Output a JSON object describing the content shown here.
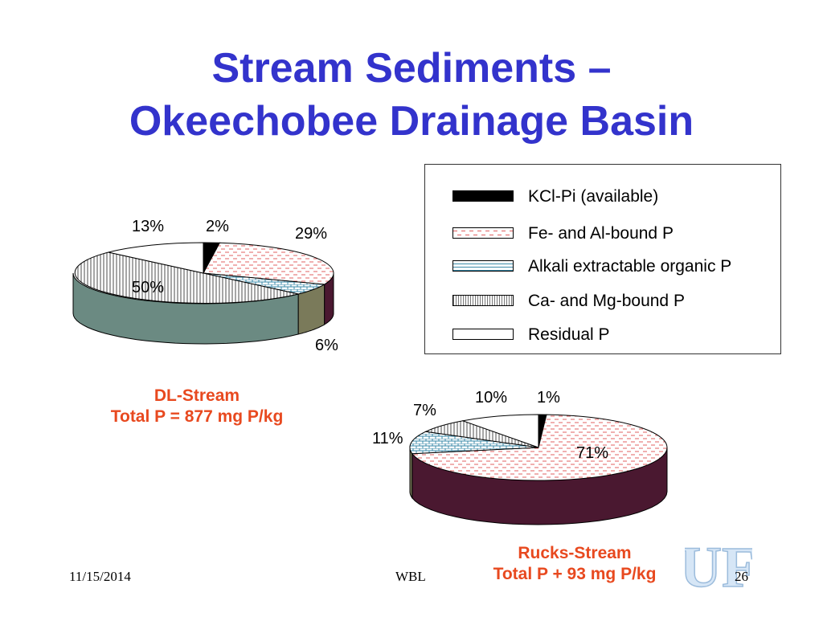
{
  "slide": {
    "title_line1": "Stream Sediments –",
    "title_line2": "Okeechobee Drainage Basin",
    "footer_date": "11/15/2014",
    "footer_center": "WBL",
    "page_number": "26",
    "logo_text": "UF"
  },
  "colors": {
    "title": "#3333cc",
    "caption": "#e8491f",
    "kcl": "#000000",
    "feal": "#e8a8a8",
    "alkali": "#3a8aa8",
    "camg": "#888888",
    "residual": "#ffffff",
    "side_feal": "#4a1830",
    "side_camg": "#6b8a82",
    "side_alkali": "#7a7a5a",
    "logo": "#cfe0f0"
  },
  "legend": [
    {
      "key": "kcl",
      "label": "KCl-Pi (available)"
    },
    {
      "key": "feal",
      "label": "Fe- and Al-bound P"
    },
    {
      "key": "alkali",
      "label": "Alkali extractable organic P"
    },
    {
      "key": "camg",
      "label": "Ca- and Mg-bound P"
    },
    {
      "key": "residual",
      "label": "Residual  P"
    }
  ],
  "chart_data": [
    {
      "type": "pie",
      "title": "DL-Stream",
      "subtitle": "Total P = 877 mg P/kg",
      "categories": [
        "KCl-Pi (available)",
        "Fe- and Al-bound P",
        "Alkali extractable organic P",
        "Ca- and Mg-bound P",
        "Residual  P"
      ],
      "values": [
        2,
        29,
        6,
        50,
        13
      ],
      "labels": [
        "2%",
        "29%",
        "6%",
        "50%",
        "13%"
      ]
    },
    {
      "type": "pie",
      "title": "Rucks-Stream",
      "subtitle": "Total P + 93 mg P/kg",
      "categories": [
        "KCl-Pi (available)",
        "Fe- and Al-bound P",
        "Alkali extractable organic P",
        "Ca- and Mg-bound P",
        "Residual  P"
      ],
      "values": [
        1,
        71,
        11,
        7,
        10
      ],
      "labels": [
        "1%",
        "71%",
        "11%",
        "7%",
        "10%"
      ]
    }
  ]
}
